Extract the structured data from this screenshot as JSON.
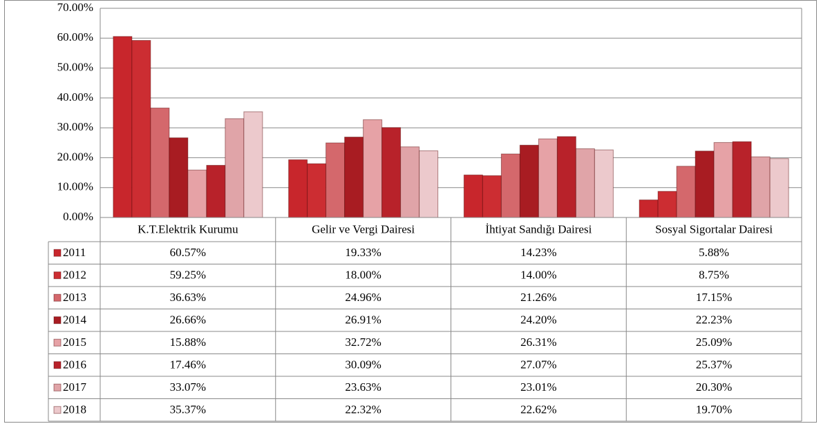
{
  "chart_data": {
    "type": "bar",
    "categories": [
      "K.T.Elektrik Kurumu",
      "Gelir ve Vergi Dairesi",
      "İhtiyat Sandığı Dairesi",
      "Sosyal Sigortalar Dairesi"
    ],
    "series": [
      {
        "name": "2011",
        "color": "#c8262c",
        "values": [
          60.57,
          19.33,
          14.23,
          5.88
        ],
        "value_labels": [
          "60.57%",
          "19.33%",
          "14.23%",
          "5.88%"
        ]
      },
      {
        "name": "2012",
        "color": "#cc2d32",
        "values": [
          59.25,
          18.0,
          14.0,
          8.75
        ],
        "value_labels": [
          "59.25%",
          "18.00%",
          "14.00%",
          "8.75%"
        ]
      },
      {
        "name": "2013",
        "color": "#d4686c",
        "values": [
          36.63,
          24.96,
          21.26,
          17.15
        ],
        "value_labels": [
          "36.63%",
          "24.96%",
          "21.26%",
          "17.15%"
        ]
      },
      {
        "name": "2014",
        "color": "#a81c22",
        "values": [
          26.66,
          26.91,
          24.2,
          22.23
        ],
        "value_labels": [
          "26.66%",
          "26.91%",
          "24.20%",
          "22.23%"
        ]
      },
      {
        "name": "2015",
        "color": "#e6a2a6",
        "values": [
          15.88,
          32.72,
          26.31,
          25.09
        ],
        "value_labels": [
          "15.88%",
          "32.72%",
          "26.31%",
          "25.09%"
        ]
      },
      {
        "name": "2016",
        "color": "#b8222a",
        "values": [
          17.46,
          30.09,
          27.07,
          25.37
        ],
        "value_labels": [
          "17.46%",
          "30.09%",
          "27.07%",
          "25.37%"
        ]
      },
      {
        "name": "2017",
        "color": "#e0a4a8",
        "values": [
          33.07,
          23.63,
          23.01,
          20.3
        ],
        "value_labels": [
          "33.07%",
          "23.63%",
          "23.01%",
          "20.30%"
        ]
      },
      {
        "name": "2018",
        "color": "#ecc9cc",
        "values": [
          35.37,
          22.32,
          22.62,
          19.7
        ],
        "value_labels": [
          "35.37%",
          "22.32%",
          "22.62%",
          "19.70%"
        ]
      }
    ],
    "ylim": [
      0,
      70
    ],
    "yticks": [
      {
        "value": 0,
        "label": "0.00%"
      },
      {
        "value": 10,
        "label": "10.00%"
      },
      {
        "value": 20,
        "label": "20.00%"
      },
      {
        "value": 30,
        "label": "30.00%"
      },
      {
        "value": 40,
        "label": "40.00%"
      },
      {
        "value": 50,
        "label": "50.00%"
      },
      {
        "value": 60,
        "label": "60.00%"
      },
      {
        "value": 70,
        "label": "70.00%"
      }
    ],
    "grid": true
  }
}
